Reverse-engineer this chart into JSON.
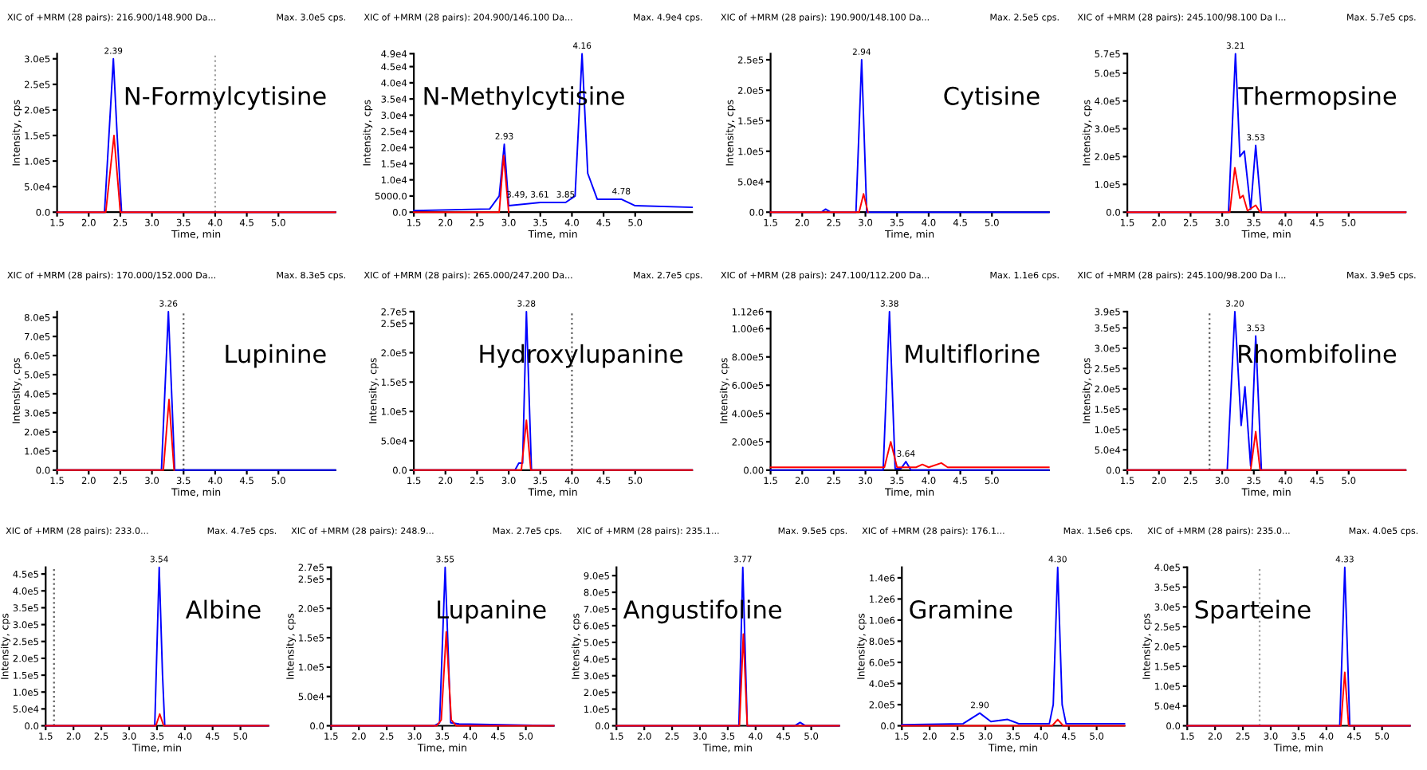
{
  "chart_data": [
    {
      "type": "line",
      "title": "N-Formylcytisine",
      "subtitle": "XIC of +MRM (28 pairs): 216.900/148.900 Da...",
      "xlabel": "Time, min",
      "ylabel": "Intensity, cps",
      "annotations": [
        "Max. 3.0e5 cps.",
        {
          "text": "2.39",
          "x": 2.39,
          "y": 300000
        }
      ],
      "xlim": [
        1.5,
        5.9
      ],
      "xticks": [
        1.5,
        {
          "value": 2,
          "label": "2.0"
        },
        2.5,
        {
          "value": 3,
          "label": "3.0"
        },
        3.5,
        {
          "value": 4,
          "label": "4.0"
        },
        4.5,
        {
          "value": 5,
          "label": "5.0"
        }
      ],
      "ylim": [
        0,
        310000
      ],
      "yticks": [
        {
          "value": 0,
          "label": "0.0"
        },
        {
          "value": 50000,
          "label": "5.0e4"
        },
        {
          "value": 100000,
          "label": "1.0e5"
        },
        {
          "value": 150000,
          "label": "1.5e5"
        },
        {
          "value": 200000,
          "label": "2.0e5"
        },
        {
          "value": 250000,
          "label": "2.5e5"
        },
        {
          "value": 300000,
          "label": "3.0e5"
        }
      ],
      "ref_lines": [
        {
          "axis": "x",
          "value": 4.0,
          "color": "#a0a0a0",
          "line_style": "dotted"
        }
      ],
      "series": [
        {
          "color": "#0000ff",
          "x": [
            1.5,
            2.25,
            2.32,
            2.39,
            2.45,
            2.52,
            5.9
          ],
          "values": [
            0,
            0,
            150000,
            300000,
            150000,
            0,
            0
          ]
        },
        {
          "color": "#ff0000",
          "x": [
            1.5,
            2.27,
            2.4,
            2.5,
            5.9
          ],
          "values": [
            0,
            0,
            150000,
            0,
            0
          ]
        }
      ]
    },
    {
      "type": "line",
      "title": "N-Methylcytisine",
      "subtitle": "XIC of +MRM (28 pairs): 204.900/146.100 Da...",
      "xlabel": "Time, min",
      "ylabel": "Intensity, cps",
      "annotations": [
        "Max. 4.9e4 cps.",
        {
          "text": "2.93",
          "x": 2.93,
          "y": 21000
        },
        {
          "text": "3.49, 3.61",
          "x": 3.3,
          "y": 3000
        },
        {
          "text": "3.85",
          "x": 3.9,
          "y": 3000
        },
        {
          "text": "4.16",
          "x": 4.16,
          "y": 49000
        },
        {
          "text": "4.78",
          "x": 4.78,
          "y": 4000
        }
      ],
      "xlim": [
        1.5,
        5.9
      ],
      "xticks": [
        1.5,
        {
          "value": 2,
          "label": "2.0"
        },
        2.5,
        {
          "value": 3,
          "label": "3.0"
        },
        3.5,
        {
          "value": 4,
          "label": "4.0"
        },
        4.5,
        {
          "value": 5,
          "label": "5.0"
        }
      ],
      "ylim": [
        0,
        49000
      ],
      "yticks": [
        {
          "value": 0,
          "label": "0.0"
        },
        {
          "value": 5000,
          "label": "5000.0"
        },
        {
          "value": 10000,
          "label": "1.0e4"
        },
        {
          "value": 15000,
          "label": "1.5e4"
        },
        {
          "value": 20000,
          "label": "2.0e4"
        },
        {
          "value": 25000,
          "label": "2.5e4"
        },
        {
          "value": 30000,
          "label": "3.0e4"
        },
        {
          "value": 35000,
          "label": "3.5e4"
        },
        {
          "value": 40000,
          "label": "4.0e4"
        },
        {
          "value": 45000,
          "label": "4.5e4"
        },
        {
          "value": 49000,
          "label": "4.9e4"
        }
      ],
      "series": [
        {
          "color": "#0000ff",
          "x": [
            1.5,
            2.7,
            2.85,
            2.93,
            3.0,
            3.5,
            3.9,
            4.05,
            4.16,
            4.25,
            4.4,
            4.78,
            5.0,
            5.9
          ],
          "values": [
            500,
            1000,
            5000,
            21000,
            2000,
            3000,
            3000,
            5000,
            49000,
            12000,
            4000,
            4000,
            2000,
            1500
          ]
        },
        {
          "color": "#ff0000",
          "x": [
            1.5,
            2.85,
            2.92,
            3.0
          ],
          "values": [
            0,
            0,
            17500,
            0
          ]
        }
      ]
    },
    {
      "type": "line",
      "title": "Cytisine",
      "subtitle": "XIC of +MRM (28 pairs): 190.900/148.100 Da...",
      "xlabel": "Time, min",
      "ylabel": "Intensity, cps",
      "annotations": [
        "Max. 2.5e5 cps.",
        {
          "text": "2.94",
          "x": 2.94,
          "y": 250000
        }
      ],
      "xlim": [
        1.5,
        5.9
      ],
      "xticks": [
        1.5,
        {
          "value": 2,
          "label": "2.0"
        },
        2.5,
        {
          "value": 3,
          "label": "3.0"
        },
        3.5,
        {
          "value": 4,
          "label": "4.0"
        },
        4.5,
        {
          "value": 5,
          "label": "5.0"
        }
      ],
      "ylim": [
        0,
        260000
      ],
      "yticks": [
        {
          "value": 0,
          "label": "0.0"
        },
        {
          "value": 50000,
          "label": "5.0e4"
        },
        {
          "value": 100000,
          "label": "1.0e5"
        },
        {
          "value": 150000,
          "label": "1.5e5"
        },
        {
          "value": 200000,
          "label": "2.0e5"
        },
        {
          "value": 250000,
          "label": "2.5e5"
        }
      ],
      "series": [
        {
          "color": "#0000ff",
          "x": [
            1.5,
            2.3,
            2.37,
            2.45,
            2.85,
            2.94,
            3.02,
            5.9
          ],
          "values": [
            0,
            0,
            5000,
            0,
            0,
            250000,
            0,
            0
          ]
        },
        {
          "color": "#ff0000",
          "x": [
            1.5,
            2.9,
            2.97,
            3.04
          ],
          "values": [
            0,
            0,
            30000,
            0
          ]
        }
      ]
    },
    {
      "type": "line",
      "title": "Thermopsine",
      "subtitle": "XIC of +MRM (28 pairs): 245.100/98.100 Da I...",
      "xlabel": "Time, min",
      "ylabel": "Intensity, cps",
      "annotations": [
        "Max. 5.7e5 cps.",
        {
          "text": "3.21",
          "x": 3.21,
          "y": 570000
        },
        {
          "text": "3.53",
          "x": 3.53,
          "y": 240000
        }
      ],
      "xlim": [
        1.5,
        5.9
      ],
      "xticks": [
        1.5,
        {
          "value": 2,
          "label": "2.0"
        },
        2.5,
        {
          "value": 3,
          "label": "3.0"
        },
        3.5,
        {
          "value": 4,
          "label": "4.0"
        },
        4.5,
        {
          "value": 5,
          "label": "5.0"
        }
      ],
      "ylim": [
        0,
        570000
      ],
      "yticks": [
        {
          "value": 0,
          "label": "0.0"
        },
        {
          "value": 100000,
          "label": "1.0e5"
        },
        {
          "value": 200000,
          "label": "2.0e5"
        },
        {
          "value": 300000,
          "label": "3.0e5"
        },
        {
          "value": 400000,
          "label": "4.0e5"
        },
        {
          "value": 500000,
          "label": "5.0e5"
        },
        {
          "value": 570000,
          "label": "5.7e5"
        }
      ],
      "series": [
        {
          "color": "#0000ff",
          "x": [
            1.5,
            3.1,
            3.21,
            3.28,
            3.35,
            3.45,
            3.53,
            3.62,
            5.9
          ],
          "values": [
            0,
            0,
            570000,
            200000,
            220000,
            10000,
            240000,
            0,
            0
          ]
        },
        {
          "color": "#ff0000",
          "x": [
            1.5,
            3.12,
            3.2,
            3.28,
            3.33,
            3.4,
            3.53,
            3.6,
            5.9
          ],
          "values": [
            0,
            0,
            160000,
            50000,
            60000,
            5000,
            25000,
            0,
            0
          ]
        }
      ]
    },
    {
      "type": "line",
      "title": "Lupinine",
      "subtitle": "XIC of +MRM (28 pairs): 170.000/152.000 Da...",
      "xlabel": "Time, min",
      "ylabel": "Intensity, cps",
      "annotations": [
        "Max. 8.3e5 cps.",
        {
          "text": "3.26",
          "x": 3.26,
          "y": 830000
        }
      ],
      "xlim": [
        1.5,
        5.9
      ],
      "xticks": [
        1.5,
        {
          "value": 2,
          "label": "2.0"
        },
        2.5,
        {
          "value": 3,
          "label": "3.0"
        },
        3.5,
        {
          "value": 4,
          "label": "4.0"
        },
        4.5,
        {
          "value": 5,
          "label": "5.0"
        }
      ],
      "ylim": [
        0,
        830000
      ],
      "yticks": [
        {
          "value": 0,
          "label": "0.0"
        },
        {
          "value": 100000,
          "label": "1.0e5"
        },
        {
          "value": 200000,
          "label": "2.0e5"
        },
        {
          "value": 300000,
          "label": "3.0e5"
        },
        {
          "value": 400000,
          "label": "4.0e5"
        },
        {
          "value": 500000,
          "label": "5.0e5"
        },
        {
          "value": 600000,
          "label": "6.0e5"
        },
        {
          "value": 700000,
          "label": "7.0e5"
        },
        {
          "value": 800000,
          "label": "8.0e5"
        }
      ],
      "ref_lines": [
        {
          "axis": "x",
          "value": 3.5,
          "color": "#606060",
          "line_style": "dotted"
        }
      ],
      "series": [
        {
          "color": "#0000ff",
          "x": [
            1.5,
            3.15,
            3.26,
            3.36,
            5.9
          ],
          "values": [
            0,
            0,
            830000,
            0,
            0
          ]
        },
        {
          "color": "#ff0000",
          "x": [
            1.5,
            3.18,
            3.27,
            3.35
          ],
          "values": [
            0,
            0,
            370000,
            0
          ]
        }
      ]
    },
    {
      "type": "line",
      "title": "Hydroxylupanine",
      "subtitle": "XIC of +MRM (28 pairs): 265.000/247.200 Da...",
      "xlabel": "Time, min",
      "ylabel": "Intensity, cps",
      "annotations": [
        "Max. 2.7e5 cps.",
        {
          "text": "3.28",
          "x": 3.28,
          "y": 270000
        }
      ],
      "xlim": [
        1.5,
        5.9
      ],
      "xticks": [
        1.5,
        {
          "value": 2,
          "label": "2.0"
        },
        2.5,
        {
          "value": 3,
          "label": "3.0"
        },
        3.5,
        {
          "value": 4,
          "label": "4.0"
        },
        4.5,
        {
          "value": 5,
          "label": "5.0"
        }
      ],
      "ylim": [
        0,
        270000
      ],
      "yticks": [
        {
          "value": 0,
          "label": "0.0"
        },
        {
          "value": 50000,
          "label": "5.0e4"
        },
        {
          "value": 100000,
          "label": "1.0e5"
        },
        {
          "value": 150000,
          "label": "1.5e5"
        },
        {
          "value": 200000,
          "label": "2.0e5"
        },
        {
          "value": 250000,
          "label": "2.5e5"
        },
        {
          "value": 270000,
          "label": "2.7e5"
        }
      ],
      "ref_lines": [
        {
          "axis": "x",
          "value": 4.0,
          "color": "#606060",
          "line_style": "dotted"
        }
      ],
      "series": [
        {
          "color": "#0000ff",
          "x": [
            1.5,
            3.1,
            3.16,
            3.22,
            3.28,
            3.36,
            5.9
          ],
          "values": [
            0,
            0,
            12000,
            12000,
            270000,
            0,
            0
          ]
        },
        {
          "color": "#ff0000",
          "x": [
            1.5,
            3.2,
            3.28,
            3.35,
            5.9
          ],
          "values": [
            0,
            0,
            85000,
            0,
            0
          ]
        }
      ]
    },
    {
      "type": "line",
      "title": "Multiflorine",
      "subtitle": "XIC of +MRM (28 pairs): 247.100/112.200 Da...",
      "xlabel": "Time, min",
      "ylabel": "Intensity, cps",
      "annotations": [
        "Max. 1.1e6 cps.",
        {
          "text": "3.38",
          "x": 3.38,
          "y": 1120000
        },
        {
          "text": "3.64",
          "x": 3.64,
          "y": 60000
        }
      ],
      "xlim": [
        1.5,
        5.9
      ],
      "xticks": [
        1.5,
        {
          "value": 2,
          "label": "2.0"
        },
        2.5,
        {
          "value": 3,
          "label": "3.0"
        },
        3.5,
        {
          "value": 4,
          "label": "4.0"
        },
        4.5,
        {
          "value": 5,
          "label": "5.0"
        }
      ],
      "ylim": [
        0,
        1120000
      ],
      "yticks": [
        {
          "value": 0,
          "label": "0.00"
        },
        {
          "value": 200000,
          "label": "2.00e5"
        },
        {
          "value": 400000,
          "label": "4.00e5"
        },
        {
          "value": 600000,
          "label": "6.00e5"
        },
        {
          "value": 800000,
          "label": "8.00e5"
        },
        {
          "value": 1000000,
          "label": "1.00e6"
        },
        {
          "value": 1120000,
          "label": "1.12e6"
        }
      ],
      "series": [
        {
          "color": "#0000ff",
          "x": [
            1.5,
            3.28,
            3.38,
            3.47,
            3.56,
            3.64,
            3.72,
            5.9
          ],
          "values": [
            0,
            0,
            1120000,
            10000,
            10000,
            60000,
            0,
            0
          ]
        },
        {
          "color": "#ff0000",
          "x": [
            1.5,
            3.3,
            3.4,
            3.5,
            3.8,
            3.9,
            4.0,
            4.2,
            4.3,
            5.9
          ],
          "values": [
            20000,
            20000,
            200000,
            20000,
            20000,
            40000,
            20000,
            50000,
            20000,
            20000
          ]
        }
      ]
    },
    {
      "type": "line",
      "title": "Rhombifoline",
      "subtitle": "XIC of +MRM (28 pairs): 245.100/98.200 Da I...",
      "xlabel": "Time, min",
      "ylabel": "Intensity, cps",
      "annotations": [
        "Max. 3.9e5 cps.",
        {
          "text": "3.20",
          "x": 3.2,
          "y": 390000
        },
        {
          "text": "3.53",
          "x": 3.53,
          "y": 330000
        }
      ],
      "xlim": [
        1.5,
        5.9
      ],
      "xticks": [
        1.5,
        {
          "value": 2,
          "label": "2.0"
        },
        2.5,
        {
          "value": 3,
          "label": "3.0"
        },
        3.5,
        {
          "value": 4,
          "label": "4.0"
        },
        4.5,
        {
          "value": 5,
          "label": "5.0"
        }
      ],
      "ylim": [
        0,
        390000
      ],
      "yticks": [
        {
          "value": 0,
          "label": "0.0"
        },
        {
          "value": 50000,
          "label": "5.0e4"
        },
        {
          "value": 100000,
          "label": "1.0e5"
        },
        {
          "value": 150000,
          "label": "1.5e5"
        },
        {
          "value": 200000,
          "label": "2.0e5"
        },
        {
          "value": 250000,
          "label": "2.5e5"
        },
        {
          "value": 300000,
          "label": "3.0e5"
        },
        {
          "value": 350000,
          "label": "3.5e5"
        },
        {
          "value": 390000,
          "label": "3.9e5"
        }
      ],
      "ref_lines": [
        {
          "axis": "x",
          "value": 2.8,
          "color": "#606060",
          "line_style": "dotted"
        }
      ],
      "series": [
        {
          "color": "#0000ff",
          "x": [
            1.5,
            3.08,
            3.2,
            3.3,
            3.36,
            3.45,
            3.53,
            3.62,
            5.9
          ],
          "values": [
            0,
            0,
            390000,
            110000,
            205000,
            10000,
            330000,
            0,
            0
          ]
        },
        {
          "color": "#ff0000",
          "x": [
            1.5,
            3.45,
            3.53,
            3.6,
            5.9
          ],
          "values": [
            0,
            0,
            95000,
            0,
            0
          ]
        }
      ]
    },
    {
      "type": "line",
      "title": "Albine",
      "subtitle": "XIC of +MRM (28 pairs): 233.0...",
      "xlabel": "Time, min",
      "ylabel": "Intensity, cps",
      "annotations": [
        "Max. 4.7e5 cps.",
        {
          "text": "3.54",
          "x": 3.54,
          "y": 470000
        }
      ],
      "xlim": [
        1.5,
        5.5
      ],
      "xticks": [
        1.5,
        {
          "value": 2,
          "label": "2.0"
        },
        2.5,
        {
          "value": 3,
          "label": "3.0"
        },
        3.5,
        {
          "value": 4,
          "label": "4.0"
        },
        4.5,
        {
          "value": 5,
          "label": "5.0"
        }
      ],
      "ylim": [
        0,
        470000
      ],
      "yticks": [
        {
          "value": 0,
          "label": "0.0"
        },
        {
          "value": 50000,
          "label": "5.0e4"
        },
        {
          "value": 100000,
          "label": "1.0e5"
        },
        {
          "value": 150000,
          "label": "1.5e5"
        },
        {
          "value": 200000,
          "label": "2.0e5"
        },
        {
          "value": 250000,
          "label": "2.5e5"
        },
        {
          "value": 300000,
          "label": "3.0e5"
        },
        {
          "value": 350000,
          "label": "3.5e5"
        },
        {
          "value": 400000,
          "label": "4.0e5"
        },
        {
          "value": 450000,
          "label": "4.5e5"
        }
      ],
      "ref_lines": [
        {
          "axis": "x",
          "value": 1.65,
          "color": "#606060",
          "line_style": "dotted"
        }
      ],
      "series": [
        {
          "color": "#0000ff",
          "x": [
            1.5,
            3.46,
            3.54,
            3.6,
            3.64,
            5.5
          ],
          "values": [
            0,
            0,
            470000,
            150000,
            0,
            0
          ]
        },
        {
          "color": "#ff0000",
          "x": [
            1.5,
            3.48,
            3.55,
            3.62,
            5.5
          ],
          "values": [
            0,
            0,
            35000,
            0,
            0
          ]
        }
      ]
    },
    {
      "type": "line",
      "title": "Lupanine",
      "subtitle": "XIC of +MRM (28 pairs): 248.9...",
      "xlabel": "Time, min",
      "ylabel": "Intensity, cps",
      "annotations": [
        "Max. 2.7e5 cps.",
        {
          "text": "3.55",
          "x": 3.55,
          "y": 270000
        }
      ],
      "xlim": [
        1.5,
        5.5
      ],
      "xticks": [
        1.5,
        {
          "value": 2,
          "label": "2.0"
        },
        2.5,
        {
          "value": 3,
          "label": "3.0"
        },
        3.5,
        {
          "value": 4,
          "label": "4.0"
        },
        4.5,
        {
          "value": 5,
          "label": "5.0"
        }
      ],
      "ylim": [
        0,
        270000
      ],
      "yticks": [
        {
          "value": 0,
          "label": "0.0"
        },
        {
          "value": 50000,
          "label": "5.0e4"
        },
        {
          "value": 100000,
          "label": "1.0e5"
        },
        {
          "value": 150000,
          "label": "1.5e5"
        },
        {
          "value": 200000,
          "label": "2.0e5"
        },
        {
          "value": 250000,
          "label": "2.5e5"
        },
        {
          "value": 270000,
          "label": "2.7e5"
        }
      ],
      "series": [
        {
          "color": "#0000ff",
          "x": [
            1.5,
            3.35,
            3.45,
            3.55,
            3.65,
            3.8,
            5.5
          ],
          "values": [
            0,
            0,
            5000,
            270000,
            5000,
            3000,
            0
          ]
        },
        {
          "color": "#ff0000",
          "x": [
            1.5,
            3.4,
            3.48,
            3.57,
            3.66,
            3.75,
            5.5
          ],
          "values": [
            0,
            0,
            10000,
            160000,
            10000,
            0,
            0
          ]
        }
      ]
    },
    {
      "type": "line",
      "title": "Angustifoline",
      "subtitle": "XIC of +MRM (28 pairs): 235.1...",
      "xlabel": "Time, min",
      "ylabel": "Intensity, cps",
      "annotations": [
        "Max. 9.5e5 cps.",
        {
          "text": "3.77",
          "x": 3.77,
          "y": 950000
        }
      ],
      "xlim": [
        1.5,
        5.5
      ],
      "xticks": [
        1.5,
        {
          "value": 2,
          "label": "2.0"
        },
        2.5,
        {
          "value": 3,
          "label": "3.0"
        },
        3.5,
        {
          "value": 4,
          "label": "4.0"
        },
        4.5,
        {
          "value": 5,
          "label": "5.0"
        }
      ],
      "ylim": [
        0,
        950000
      ],
      "yticks": [
        {
          "value": 0,
          "label": "0.0"
        },
        {
          "value": 100000,
          "label": "1.0e5"
        },
        {
          "value": 200000,
          "label": "2.0e5"
        },
        {
          "value": 300000,
          "label": "3.0e5"
        },
        {
          "value": 400000,
          "label": "4.0e5"
        },
        {
          "value": 500000,
          "label": "5.0e5"
        },
        {
          "value": 600000,
          "label": "6.0e5"
        },
        {
          "value": 700000,
          "label": "7.0e5"
        },
        {
          "value": 800000,
          "label": "8.0e5"
        },
        {
          "value": 900000,
          "label": "9.0e5"
        }
      ],
      "series": [
        {
          "color": "#0000ff",
          "x": [
            1.5,
            3.7,
            3.77,
            3.85,
            4.7,
            4.8,
            4.9,
            5.5
          ],
          "values": [
            0,
            0,
            950000,
            0,
            0,
            20000,
            0,
            0
          ]
        },
        {
          "color": "#ff0000",
          "x": [
            1.5,
            3.71,
            3.78,
            3.85,
            5.5
          ],
          "values": [
            0,
            0,
            550000,
            0,
            0
          ]
        }
      ]
    },
    {
      "type": "line",
      "title": "Gramine",
      "subtitle": "XIC of +MRM (28 pairs): 176.1...",
      "xlabel": "Time, min",
      "ylabel": "Intensity, cps",
      "annotations": [
        "Max. 1.5e6 cps.",
        {
          "text": "2.90",
          "x": 2.9,
          "y": 120000
        },
        {
          "text": "4.30",
          "x": 4.3,
          "y": 1500000
        }
      ],
      "xlim": [
        1.5,
        5.5
      ],
      "xticks": [
        1.5,
        {
          "value": 2,
          "label": "2.0"
        },
        2.5,
        {
          "value": 3,
          "label": "3.0"
        },
        3.5,
        {
          "value": 4,
          "label": "4.0"
        },
        4.5,
        {
          "value": 5,
          "label": "5.0"
        }
      ],
      "ylim": [
        0,
        1500000
      ],
      "yticks": [
        {
          "value": 0,
          "label": "0.0"
        },
        {
          "value": 200000,
          "label": "2.0e5"
        },
        {
          "value": 400000,
          "label": "4.0e5"
        },
        {
          "value": 600000,
          "label": "6.0e5"
        },
        {
          "value": 800000,
          "label": "8.0e5"
        },
        {
          "value": 1000000,
          "label": "1.0e6"
        },
        {
          "value": 1200000,
          "label": "1.2e6"
        },
        {
          "value": 1400000,
          "label": "1.4e6"
        }
      ],
      "series": [
        {
          "color": "#0000ff",
          "x": [
            1.5,
            2.6,
            2.9,
            3.1,
            3.4,
            3.6,
            4.15,
            4.22,
            4.3,
            4.38,
            4.45,
            5.5
          ],
          "values": [
            10000,
            20000,
            120000,
            40000,
            60000,
            20000,
            20000,
            200000,
            1500000,
            200000,
            20000,
            20000
          ]
        },
        {
          "color": "#ff0000",
          "x": [
            1.5,
            4.2,
            4.3,
            4.4,
            5.5
          ],
          "values": [
            0,
            0,
            60000,
            0,
            0
          ]
        }
      ]
    },
    {
      "type": "line",
      "title": "Sparteine",
      "subtitle": "XIC of +MRM (28 pairs): 235.0...",
      "xlabel": "Time, min",
      "ylabel": "Intensity, cps",
      "annotations": [
        "Max. 4.0e5 cps.",
        {
          "text": "4.33",
          "x": 4.33,
          "y": 400000
        }
      ],
      "xlim": [
        1.5,
        5.5
      ],
      "xticks": [
        1.5,
        {
          "value": 2,
          "label": "2.0"
        },
        2.5,
        {
          "value": 3,
          "label": "3.0"
        },
        3.5,
        {
          "value": 4,
          "label": "4.0"
        },
        4.5,
        {
          "value": 5,
          "label": "5.0"
        }
      ],
      "ylim": [
        0,
        400000
      ],
      "yticks": [
        {
          "value": 0,
          "label": "0.0"
        },
        {
          "value": 50000,
          "label": "5.0e4"
        },
        {
          "value": 100000,
          "label": "1.0e5"
        },
        {
          "value": 150000,
          "label": "1.5e5"
        },
        {
          "value": 200000,
          "label": "2.0e5"
        },
        {
          "value": 250000,
          "label": "2.5e5"
        },
        {
          "value": 300000,
          "label": "3.0e5"
        },
        {
          "value": 350000,
          "label": "3.5e5"
        },
        {
          "value": 400000,
          "label": "4.0e5"
        }
      ],
      "ref_lines": [
        {
          "axis": "x",
          "value": 2.8,
          "color": "#a0a0a0",
          "line_style": "dotted"
        }
      ],
      "series": [
        {
          "color": "#0000ff",
          "x": [
            1.5,
            4.24,
            4.33,
            4.42,
            5.5
          ],
          "values": [
            0,
            0,
            400000,
            0,
            0
          ]
        },
        {
          "color": "#ff0000",
          "x": [
            1.5,
            4.26,
            4.33,
            4.4,
            5.5
          ],
          "values": [
            0,
            0,
            135000,
            0,
            0
          ]
        }
      ]
    }
  ]
}
